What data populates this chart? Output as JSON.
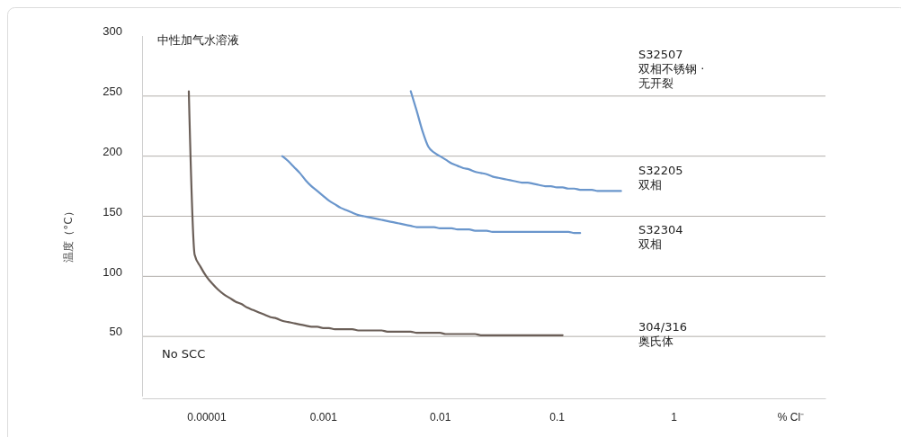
{
  "chart_data": {
    "type": "line",
    "ylabel": "温度（°C）",
    "categories": [
      null,
      null,
      null,
      null,
      null,
      null,
      null,
      null,
      null,
      null,
      null,
      "0.00001",
      null,
      null,
      null,
      null,
      null,
      null,
      null,
      null,
      null,
      null,
      null,
      null,
      null,
      null,
      null,
      null,
      null,
      null,
      null,
      "0.001",
      null,
      null,
      null,
      null,
      null,
      null,
      null,
      null,
      null,
      null,
      null,
      null,
      null,
      null,
      null,
      null,
      null,
      null,
      null,
      "0.01",
      null,
      null,
      null,
      null,
      null,
      null,
      null,
      null,
      null,
      null,
      null,
      null,
      null,
      null,
      null,
      null,
      null,
      null,
      null,
      "0.1",
      null,
      null,
      null,
      null,
      null,
      null,
      null,
      null,
      null,
      null,
      null,
      null,
      null,
      null,
      null,
      null,
      null,
      null,
      null,
      "1",
      null,
      null,
      null,
      null,
      null,
      null,
      null,
      null,
      null,
      null,
      null,
      null,
      null,
      null,
      null,
      null,
      null,
      null,
      null,
      "%  Cl⁻",
      null,
      null,
      null,
      null,
      null,
      null
    ],
    "ylim": [
      0,
      300
    ],
    "yticks": [
      50,
      100,
      150,
      200,
      250,
      300
    ],
    "grid": "y",
    "line_style": "solid",
    "series": [
      {
        "color": "#6a96cc",
        "values": [
          null,
          null,
          null,
          null,
          null,
          null,
          null,
          null,
          null,
          null,
          null,
          null,
          null,
          null,
          null,
          null,
          null,
          null,
          null,
          null,
          null,
          null,
          null,
          null,
          null,
          null,
          null,
          null,
          null,
          null,
          null,
          null,
          null,
          null,
          null,
          null,
          null,
          null,
          null,
          null,
          null,
          null,
          null,
          null,
          null,
          null,
          254,
          238,
          221,
          208,
          203,
          200,
          197,
          194,
          192,
          190,
          189,
          187,
          186,
          185,
          183,
          182,
          181,
          180,
          179,
          178,
          178,
          177,
          176,
          175,
          175,
          174,
          174,
          173,
          173,
          172,
          172,
          172,
          171,
          171,
          171,
          171,
          171,
          null,
          null,
          null,
          null,
          null,
          null,
          null,
          null,
          null,
          null,
          null,
          null,
          null,
          null,
          null,
          null,
          null,
          null,
          null,
          null,
          null,
          null,
          null,
          null,
          null,
          null,
          null,
          null,
          null,
          null,
          null,
          null,
          null,
          null,
          null
        ]
      },
      {
        "color": "#6a96cc",
        "values": [
          null,
          null,
          null,
          null,
          null,
          null,
          null,
          null,
          null,
          null,
          null,
          null,
          null,
          null,
          null,
          null,
          null,
          null,
          null,
          null,
          null,
          null,
          null,
          null,
          200,
          196,
          191,
          186,
          180,
          175,
          171,
          167,
          163,
          160,
          157,
          155,
          153,
          151,
          150,
          149,
          148,
          147,
          146,
          145,
          144,
          143,
          142,
          141,
          141,
          141,
          141,
          140,
          140,
          140,
          139,
          139,
          139,
          138,
          138,
          138,
          137,
          137,
          137,
          137,
          137,
          137,
          137,
          137,
          137,
          137,
          137,
          137,
          137,
          137,
          136,
          136,
          null,
          null,
          null,
          null,
          null,
          null,
          null,
          null,
          null,
          null,
          null,
          null,
          null,
          null,
          null,
          null,
          null,
          null,
          null,
          null,
          null,
          null,
          null,
          null,
          null,
          null,
          null,
          null,
          null,
          null,
          null,
          null,
          null,
          null,
          null,
          null,
          null,
          null,
          null,
          null,
          null,
          null
        ]
      },
      {
        "color": "#6b5f58",
        "values": [
          null,
          null,
          null,
          null,
          null,
          null,
          null,
          null,
          254,
          118,
          108,
          100,
          94,
          89,
          85,
          82,
          79,
          77,
          74,
          72,
          70,
          68,
          66,
          65,
          63,
          62,
          61,
          60,
          59,
          58,
          58,
          57,
          57,
          56,
          56,
          56,
          56,
          55,
          55,
          55,
          55,
          55,
          54,
          54,
          54,
          54,
          54,
          53,
          53,
          53,
          53,
          53,
          52,
          52,
          52,
          52,
          52,
          52,
          51,
          51,
          51,
          51,
          51,
          51,
          51,
          51,
          51,
          51,
          51,
          51,
          51,
          51,
          51,
          null,
          null,
          null,
          null,
          null,
          null,
          null,
          null,
          null,
          null,
          null,
          null,
          null,
          null,
          null,
          null,
          null,
          null,
          null,
          null,
          null,
          null,
          null,
          null,
          null,
          null,
          null,
          null,
          null,
          null,
          null,
          null,
          null,
          null,
          null,
          null,
          null,
          null,
          null,
          null,
          null,
          null,
          null,
          null,
          null
        ]
      }
    ],
    "annotations": [
      "中性加气水溶液",
      "No SCC",
      "S32507\n双相不锈钢 ·\n无开裂",
      "S32205\n双相",
      "S32304\n双相",
      "304/316\n奥氏体"
    ]
  }
}
